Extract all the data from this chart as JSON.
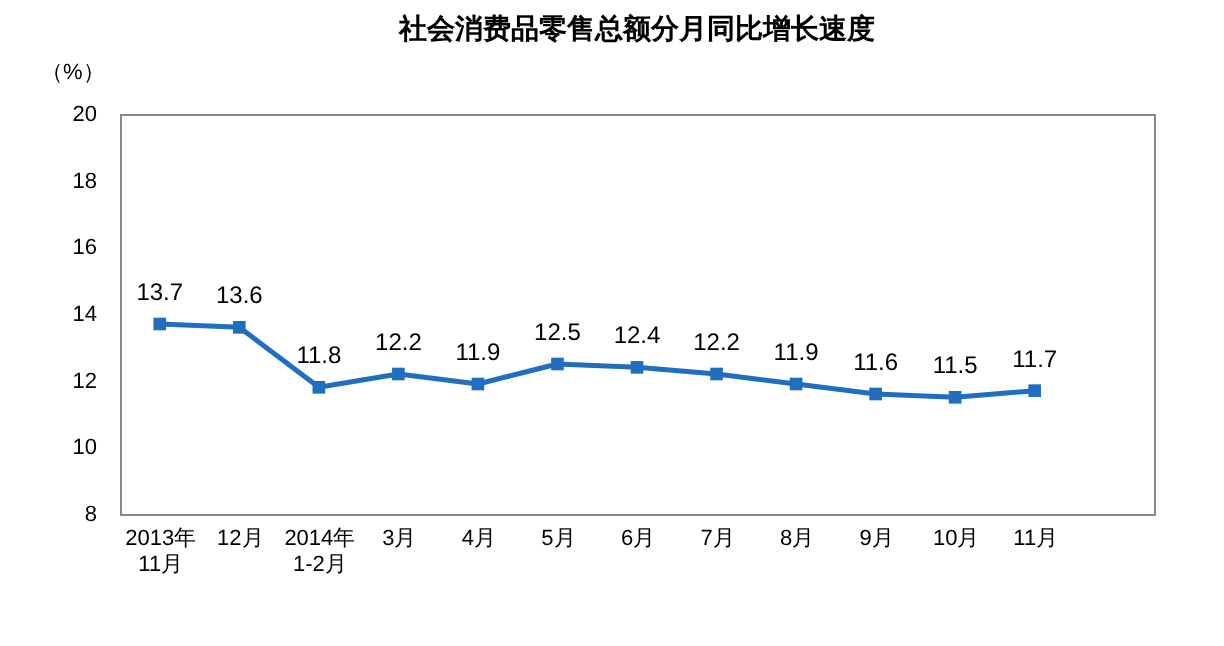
{
  "chart_data": {
    "type": "line",
    "title": "社会消费品零售总额分月同比增长速度",
    "ylabel": "（%）",
    "categories": [
      "2013年\n11月",
      "12月",
      "2014年\n1-2月",
      "3月",
      "4月",
      "5月",
      "6月",
      "7月",
      "8月",
      "9月",
      "10月",
      "11月"
    ],
    "series": [
      {
        "color": "#1f6ebf",
        "values": [
          13.7,
          13.6,
          11.8,
          12.2,
          11.9,
          12.5,
          12.4,
          12.2,
          11.9,
          11.6,
          11.5,
          11.7
        ]
      }
    ],
    "ylim": [
      8,
      20
    ],
    "yticks": [
      8,
      10,
      12,
      14,
      16,
      18,
      20
    ],
    "grid": false,
    "marker": "square",
    "line_style": "solid",
    "data_labels": true
  }
}
